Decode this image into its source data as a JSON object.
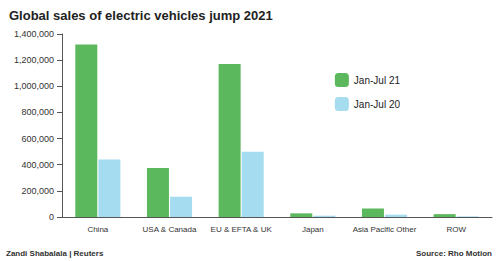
{
  "chart_data": {
    "type": "bar",
    "title": "Global sales of electric vehicles jump 2021",
    "annotations": [
      "Zandi Shabalala | Reuters",
      "Source: Rho Motion"
    ],
    "categories": [
      "China",
      "USA & Canada",
      "EU & EFTA & UK",
      "Japan",
      "Asia Pacific Other",
      "ROW"
    ],
    "series": [
      {
        "name": "Jan-Jul 21",
        "color": "#5cb85c",
        "values": [
          1320000,
          375000,
          1170000,
          28000,
          65000,
          22000
        ]
      },
      {
        "name": "Jan-Jul 20",
        "color": "#a6dcef",
        "values": [
          440000,
          155000,
          500000,
          10000,
          18000,
          5000
        ]
      }
    ],
    "ylim": [
      0,
      1400000
    ],
    "yticks": [
      0,
      {
        "value": 200000,
        "label": "200,000"
      },
      {
        "value": 400000,
        "label": "400,000"
      },
      {
        "value": 600000,
        "label": "600,000"
      },
      {
        "value": 800000,
        "label": "800,000"
      },
      {
        "value": 1000000,
        "label": "1,000,000"
      },
      {
        "value": 1200000,
        "label": "1,200,000"
      },
      {
        "value": 1400000,
        "label": "1,400,000"
      }
    ],
    "grid": false,
    "legend": "upper right"
  }
}
